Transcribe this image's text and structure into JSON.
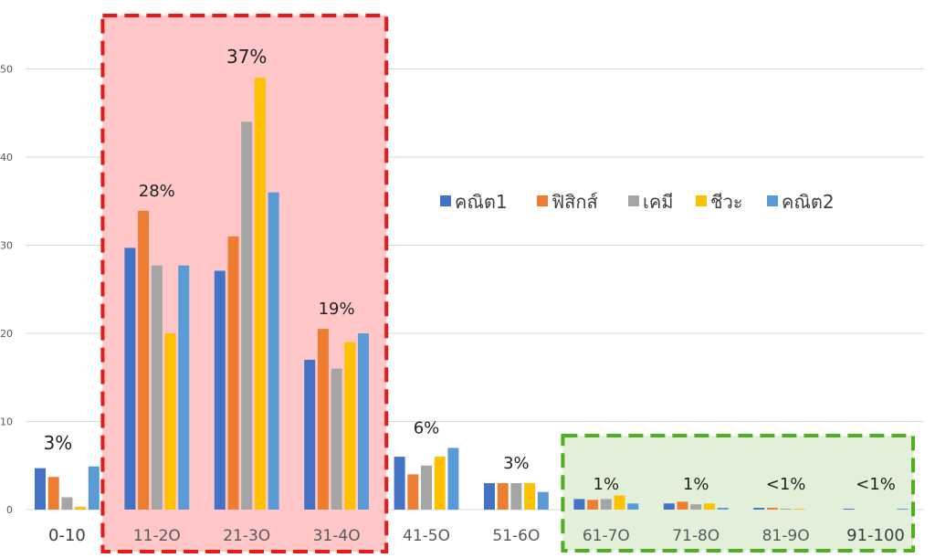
{
  "chart_data": {
    "type": "bar",
    "title": "",
    "xlabel": "",
    "ylabel": "",
    "ylim": [
      0,
      55
    ],
    "yticks": [
      0,
      10,
      20,
      30,
      40,
      50
    ],
    "grid": true,
    "legend_position": "right-center",
    "categories": [
      "0-10",
      "11-2O",
      "21-3O",
      "31-4O",
      "41-5O",
      "51-6O",
      "61-7O",
      "71-8O",
      "81-9O",
      "91-100"
    ],
    "series": [
      {
        "name": "คณิต1",
        "color": "#4472C4",
        "values": [
          4.7,
          29.7,
          27.1,
          17,
          6,
          3,
          1.2,
          0.7,
          0.2,
          0.1
        ]
      },
      {
        "name": "ฟิสิกส์",
        "color": "#ED7D31",
        "values": [
          3.7,
          33.9,
          31,
          20.5,
          4,
          3,
          1.1,
          0.9,
          0.2,
          0
        ]
      },
      {
        "name": "เคมี",
        "color": "#A5A5A5",
        "values": [
          1.4,
          27.7,
          44,
          16,
          5,
          3,
          1.2,
          0.6,
          0.1,
          0
        ]
      },
      {
        "name": "ชีวะ",
        "color": "#FFC000",
        "values": [
          0.3,
          20,
          49,
          19,
          6,
          3,
          1.6,
          0.7,
          0.1,
          0
        ]
      },
      {
        "name": "คณิต2",
        "color": "#5B9BD5",
        "values": [
          4.9,
          27.7,
          36,
          20,
          7,
          2,
          0.7,
          0.2,
          0,
          0.1
        ]
      }
    ],
    "annotations": [
      "3%",
      "28%",
      "37%",
      "19%",
      "6%",
      "3%",
      "1%",
      "1%",
      "<1%",
      "<1%"
    ],
    "highlight_boxes": [
      {
        "categories": [
          "11-2O",
          "21-3O"
        ],
        "fill": "#FFC7C7",
        "border": "#E81919"
      },
      {
        "categories": [
          "61-7O",
          "71-8O",
          "81-9O",
          "91-100"
        ],
        "fill": "#E2F0D9",
        "border": "#4FAF1E"
      }
    ]
  }
}
